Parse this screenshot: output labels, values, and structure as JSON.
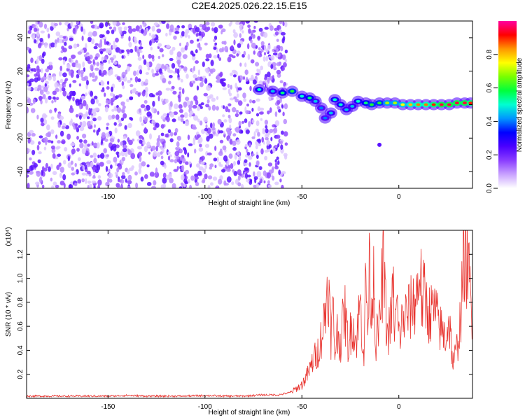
{
  "figure": {
    "title": "C2E4.2025.026.22.15.E15"
  },
  "chart_data": [
    {
      "type": "heatmap",
      "title": "C2E4.2025.026.22.15.E15",
      "xlabel": "Height of straight line (km)",
      "ylabel": "Frequency (Hz)",
      "xlim": [
        -192,
        38
      ],
      "ylim": [
        -50,
        50
      ],
      "x_ticks": [
        -150,
        -100,
        -50,
        0
      ],
      "y_ticks": [
        -40,
        -20,
        0,
        20,
        40
      ],
      "colorbar": {
        "label": "Normalized spectral amplitude",
        "range": [
          0,
          1
        ],
        "ticks": [
          "0.0",
          "0.2",
          "0.4",
          "0.6",
          "0.8"
        ],
        "colormap": [
          "#ffffff",
          "#c9a2ff",
          "#8a3dff",
          "#4b00ff",
          "#0000ff",
          "#0096ff",
          "#00ffd2",
          "#00ff3c",
          "#78ff00",
          "#ffff00",
          "#ff9600",
          "#ff0000",
          "#ff00a0"
        ]
      },
      "noise_region": {
        "x_range": [
          -192,
          -58
        ],
        "y_range": [
          -50,
          50
        ],
        "amplitude_range": [
          0.0,
          0.15
        ]
      },
      "signal_track": [
        {
          "x": -72,
          "y": 9,
          "amp": 0.5
        },
        {
          "x": -65,
          "y": 8,
          "amp": 0.45
        },
        {
          "x": -60,
          "y": 7,
          "amp": 0.55
        },
        {
          "x": -55,
          "y": 8,
          "amp": 0.6
        },
        {
          "x": -50,
          "y": 5,
          "amp": 0.5
        },
        {
          "x": -46,
          "y": 4,
          "amp": 0.55
        },
        {
          "x": -43,
          "y": 2,
          "amp": 0.45
        },
        {
          "x": -40,
          "y": -2,
          "amp": 0.4
        },
        {
          "x": -38,
          "y": -8,
          "amp": 0.4
        },
        {
          "x": -35,
          "y": -5,
          "amp": 0.45
        },
        {
          "x": -33,
          "y": 3,
          "amp": 0.5
        },
        {
          "x": -30,
          "y": 0,
          "amp": 0.5
        },
        {
          "x": -27,
          "y": -3,
          "amp": 0.45
        },
        {
          "x": -24,
          "y": -1,
          "amp": 0.45
        },
        {
          "x": -21,
          "y": 2,
          "amp": 0.5
        },
        {
          "x": -17,
          "y": 1,
          "amp": 0.55
        },
        {
          "x": -14,
          "y": 0,
          "amp": 0.6
        },
        {
          "x": -10,
          "y": 1,
          "amp": 0.6
        },
        {
          "x": -6,
          "y": 1,
          "amp": 0.7
        },
        {
          "x": -2,
          "y": 1,
          "amp": 0.7
        },
        {
          "x": 2,
          "y": 0,
          "amp": 0.75
        },
        {
          "x": 6,
          "y": 0,
          "amp": 0.8
        },
        {
          "x": 10,
          "y": 0,
          "amp": 0.85
        },
        {
          "x": 14,
          "y": 0,
          "amp": 0.85
        },
        {
          "x": 18,
          "y": 0,
          "amp": 0.9
        },
        {
          "x": 22,
          "y": 0,
          "amp": 0.95
        },
        {
          "x": 26,
          "y": 0,
          "amp": 0.95
        },
        {
          "x": 30,
          "y": 1,
          "amp": 0.95
        },
        {
          "x": 34,
          "y": 1,
          "amp": 0.95
        },
        {
          "x": 37,
          "y": 1,
          "amp": 0.9
        }
      ],
      "isolated_points": [
        {
          "x": -10,
          "y": -24,
          "amp": 0.3
        }
      ]
    },
    {
      "type": "line",
      "xlabel": "Height of straight line (km)",
      "ylabel": "SNR (10 * v/v)",
      "y_multiplier": "(x10⁴)",
      "xlim": [
        -192,
        38
      ],
      "ylim": [
        0,
        1.4
      ],
      "x_ticks": [
        -150,
        -100,
        -50,
        0
      ],
      "y_ticks": [
        0.2,
        0.4,
        0.6,
        0.8,
        1.0,
        1.2
      ],
      "y_tick_labels": [
        "0.2",
        "0.4",
        "0.6",
        "0.8",
        "1.0",
        "1.2"
      ],
      "series": [
        {
          "color": "#e8332e",
          "x": [
            -192,
            -180,
            -170,
            -160,
            -150,
            -140,
            -130,
            -120,
            -110,
            -100,
            -90,
            -80,
            -70,
            -62,
            -56,
            -50,
            -46,
            -44,
            -42,
            -40,
            -38,
            -36.5,
            -35,
            -34,
            -33,
            -32,
            -30,
            -28,
            -26,
            -24,
            -22,
            -20,
            -18,
            -17,
            -16,
            -15,
            -14,
            -13,
            -12,
            -10,
            -8,
            -6,
            -4,
            -3,
            -2,
            -1,
            0,
            2,
            4,
            6,
            8,
            10,
            11,
            12,
            13,
            14,
            16,
            18,
            20,
            22,
            24,
            26,
            28,
            30,
            32,
            33,
            34,
            35,
            36,
            37,
            38
          ],
          "y": [
            0.02,
            0.02,
            0.02,
            0.02,
            0.02,
            0.025,
            0.02,
            0.02,
            0.02,
            0.025,
            0.02,
            0.02,
            0.03,
            0.03,
            0.05,
            0.12,
            0.25,
            0.35,
            0.4,
            0.55,
            0.75,
            1.08,
            0.55,
            0.8,
            0.4,
            0.6,
            0.5,
            0.8,
            0.45,
            0.7,
            0.5,
            0.85,
            0.4,
            1.1,
            0.6,
            1.25,
            0.7,
            1.3,
            0.5,
            0.65,
            1.2,
            0.55,
            0.7,
            1.0,
            0.6,
            0.85,
            0.55,
            0.7,
            0.75,
            0.8,
            0.85,
            1.0,
            1.22,
            0.8,
            0.95,
            0.85,
            0.75,
            0.8,
            0.7,
            0.6,
            0.55,
            0.7,
            0.3,
            0.45,
            0.75,
            1.05,
            1.35,
            1.25,
            1.1,
            0.9,
            0.5
          ]
        }
      ]
    }
  ]
}
